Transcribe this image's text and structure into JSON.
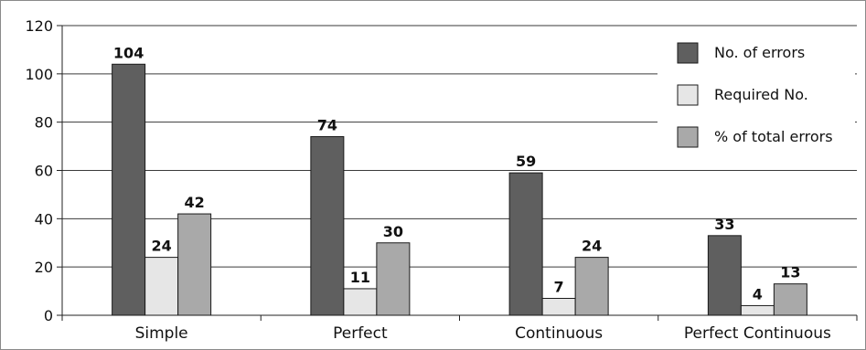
{
  "chart_data": {
    "type": "bar",
    "title": "",
    "xlabel": "",
    "ylabel": "",
    "categories": [
      "Simple",
      "Perfect",
      "Continuous",
      "Perfect Continuous"
    ],
    "series": [
      {
        "name": "No. of errors",
        "color": "#5f5f5f",
        "values": [
          104,
          74,
          59,
          33
        ]
      },
      {
        "name": "Required No.",
        "color": "#e6e6e6",
        "values": [
          24,
          11,
          7,
          4
        ]
      },
      {
        "name": "% of total errors",
        "color": "#a9a9a9",
        "values": [
          42,
          30,
          24,
          13
        ]
      }
    ],
    "ylim": [
      0,
      120
    ],
    "yticks": [
      0,
      20,
      40,
      60,
      80,
      100,
      120
    ],
    "grid": true,
    "legend_position": "top-right"
  }
}
